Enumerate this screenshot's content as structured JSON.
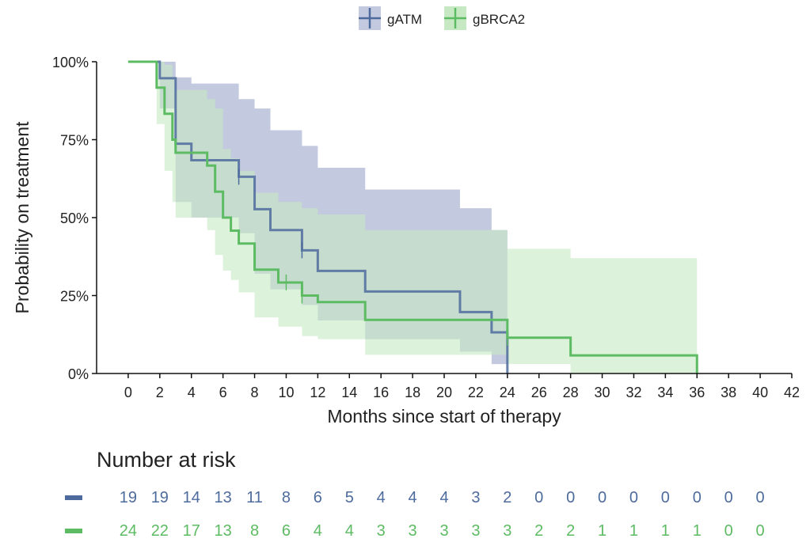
{
  "chart_data": {
    "type": "line",
    "subtype": "kaplan-meier step curve with confidence bands",
    "legend": {
      "position": "top",
      "entries": [
        "gATM",
        "gBRCA2"
      ]
    },
    "xlabel": "Months since start of therapy",
    "ylabel": "Probability on treatment",
    "xlim": [
      -2,
      42
    ],
    "ylim": [
      0,
      1
    ],
    "x_ticks": [
      0,
      2,
      4,
      6,
      8,
      10,
      12,
      14,
      16,
      18,
      20,
      22,
      24,
      26,
      28,
      30,
      32,
      34,
      36,
      38,
      40,
      42
    ],
    "y_ticks": [
      0,
      0.25,
      0.5,
      0.75,
      1.0
    ],
    "y_tick_labels": [
      "0%",
      "25%",
      "50%",
      "75%",
      "100%"
    ],
    "colors": {
      "gATM": "#4e6b9e",
      "gBRCA2": "#5dbb63",
      "gATM_band": "#c3c9de",
      "gBRCA2_band": "#c6e9c3",
      "overlap_band": "#9cc8ae"
    },
    "series": [
      {
        "name": "gATM",
        "steps": [
          [
            0,
            1.0
          ],
          [
            2,
            0.947
          ],
          [
            3,
            0.737
          ],
          [
            4,
            0.684
          ],
          [
            6,
            0.684
          ],
          [
            7,
            0.631
          ],
          [
            8,
            0.527
          ],
          [
            9,
            0.46
          ],
          [
            11,
            0.395
          ],
          [
            12,
            0.329
          ],
          [
            15,
            0.263
          ],
          [
            21,
            0.197
          ],
          [
            23,
            0.132
          ],
          [
            24,
            0.0
          ]
        ],
        "end": 24,
        "censor": [
          [
            7,
            0.631
          ],
          [
            11,
            0.395
          ]
        ],
        "ci_upper": [
          [
            0,
            1.0
          ],
          [
            2,
            1.0
          ],
          [
            3,
            0.95
          ],
          [
            4,
            0.93
          ],
          [
            6,
            0.93
          ],
          [
            7,
            0.88
          ],
          [
            8,
            0.85
          ],
          [
            9,
            0.78
          ],
          [
            11,
            0.73
          ],
          [
            12,
            0.66
          ],
          [
            15,
            0.59
          ],
          [
            21,
            0.53
          ],
          [
            23,
            0.46
          ],
          [
            24,
            0.46
          ]
        ],
        "ci_lower": [
          [
            0,
            1.0
          ],
          [
            2,
            0.85
          ],
          [
            3,
            0.55
          ],
          [
            4,
            0.5
          ],
          [
            6,
            0.5
          ],
          [
            7,
            0.45
          ],
          [
            8,
            0.32
          ],
          [
            9,
            0.27
          ],
          [
            11,
            0.22
          ],
          [
            12,
            0.17
          ],
          [
            15,
            0.11
          ],
          [
            21,
            0.07
          ],
          [
            23,
            0.03
          ],
          [
            24,
            0.0
          ]
        ]
      },
      {
        "name": "gBRCA2",
        "steps": [
          [
            0,
            1.0
          ],
          [
            1.8,
            0.917
          ],
          [
            2.3,
            0.833
          ],
          [
            2.8,
            0.75
          ],
          [
            3,
            0.708
          ],
          [
            5,
            0.667
          ],
          [
            5.5,
            0.583
          ],
          [
            6,
            0.5
          ],
          [
            6.5,
            0.458
          ],
          [
            7,
            0.417
          ],
          [
            8,
            0.333
          ],
          [
            9.5,
            0.292
          ],
          [
            11,
            0.25
          ],
          [
            12,
            0.229
          ],
          [
            15,
            0.172
          ],
          [
            24,
            0.115
          ],
          [
            28,
            0.058
          ],
          [
            36,
            0.0
          ]
        ],
        "end": 36,
        "censor": [
          [
            10,
            0.292
          ],
          [
            11,
            0.25
          ],
          [
            24,
            0.115
          ]
        ],
        "ci_upper": [
          [
            0,
            1.0
          ],
          [
            1.8,
            1.0
          ],
          [
            2.3,
            0.99
          ],
          [
            2.8,
            0.95
          ],
          [
            3,
            0.91
          ],
          [
            5,
            0.88
          ],
          [
            5.5,
            0.85
          ],
          [
            6,
            0.72
          ],
          [
            6.5,
            0.69
          ],
          [
            7,
            0.65
          ],
          [
            8,
            0.58
          ],
          [
            9.5,
            0.55
          ],
          [
            11,
            0.53
          ],
          [
            12,
            0.51
          ],
          [
            15,
            0.46
          ],
          [
            24,
            0.4
          ],
          [
            28,
            0.37
          ],
          [
            36,
            0.37
          ]
        ],
        "ci_lower": [
          [
            0,
            1.0
          ],
          [
            1.8,
            0.8
          ],
          [
            2.3,
            0.65
          ],
          [
            2.8,
            0.55
          ],
          [
            3,
            0.5
          ],
          [
            5,
            0.46
          ],
          [
            5.5,
            0.38
          ],
          [
            6,
            0.33
          ],
          [
            6.5,
            0.3
          ],
          [
            7,
            0.26
          ],
          [
            8,
            0.18
          ],
          [
            9.5,
            0.15
          ],
          [
            11,
            0.12
          ],
          [
            12,
            0.11
          ],
          [
            15,
            0.06
          ],
          [
            24,
            0.03
          ],
          [
            28,
            0.0
          ],
          [
            36,
            0.0
          ]
        ]
      }
    ],
    "risk_table": {
      "title": "Number at risk",
      "times": [
        0,
        2,
        4,
        6,
        8,
        10,
        12,
        14,
        16,
        18,
        20,
        22,
        24,
        26,
        28,
        30,
        32,
        34,
        36,
        38,
        40
      ],
      "rows": [
        {
          "name": "gATM",
          "values": [
            "19",
            "19",
            "14",
            "13",
            "11",
            "8",
            "6",
            "5",
            "4",
            "4",
            "4",
            "3",
            "2",
            "0",
            "0",
            "0",
            "0",
            "0",
            "0",
            "0",
            "0"
          ]
        },
        {
          "name": "gBRCA2",
          "values": [
            "24",
            "22",
            "17",
            "13",
            "8",
            "6",
            "4",
            "4",
            "3",
            "3",
            "3",
            "3",
            "3",
            "2",
            "2",
            "1",
            "1",
            "1",
            "1",
            "0",
            "0"
          ]
        }
      ]
    }
  }
}
